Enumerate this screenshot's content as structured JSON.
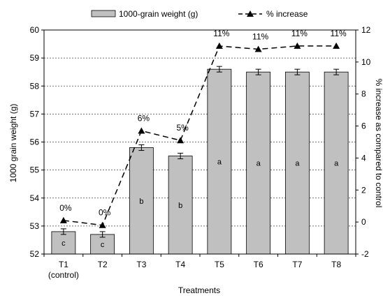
{
  "chart_data": {
    "type": "bar",
    "xlabel": "Treatments",
    "ylabel": "1000 grain weight (g)",
    "y2label": "% increase as compared to control",
    "categories": [
      "T1",
      "T2",
      "T3",
      "T4",
      "T5",
      "T6",
      "T7",
      "T8"
    ],
    "category_sublabels": [
      "(control)",
      "",
      "",
      "",
      "",
      "",
      "",
      ""
    ],
    "ylim": [
      52,
      60
    ],
    "yticks": [
      52,
      53,
      54,
      55,
      56,
      57,
      58,
      59,
      60
    ],
    "y2lim": [
      -2,
      12
    ],
    "y2ticks": [
      -2,
      0,
      2,
      4,
      6,
      8,
      10,
      12
    ],
    "grid": "horizontal dashed",
    "legend_position": "top",
    "series": [
      {
        "name": "1000-grain weight (g)",
        "kind": "bar",
        "axis": "left",
        "color": "#c0c0c0",
        "values": [
          52.8,
          52.7,
          55.8,
          55.5,
          58.6,
          58.5,
          58.5,
          58.5
        ],
        "errors": [
          0.1,
          0.1,
          0.1,
          0.1,
          0.1,
          0.1,
          0.1,
          0.1
        ],
        "letters": [
          "c",
          "c",
          "b",
          "b",
          "a",
          "a",
          "a",
          "a"
        ]
      },
      {
        "name": "% increase",
        "kind": "line",
        "axis": "right",
        "style": "dashed",
        "marker": "triangle",
        "color": "#000000",
        "values": [
          0.1,
          -0.2,
          5.7,
          5.1,
          11.0,
          10.8,
          11.0,
          11.0
        ],
        "point_labels": [
          "0%",
          "0%",
          "6%",
          "5%",
          "11%",
          "11%",
          "11%",
          "11%"
        ]
      }
    ]
  }
}
